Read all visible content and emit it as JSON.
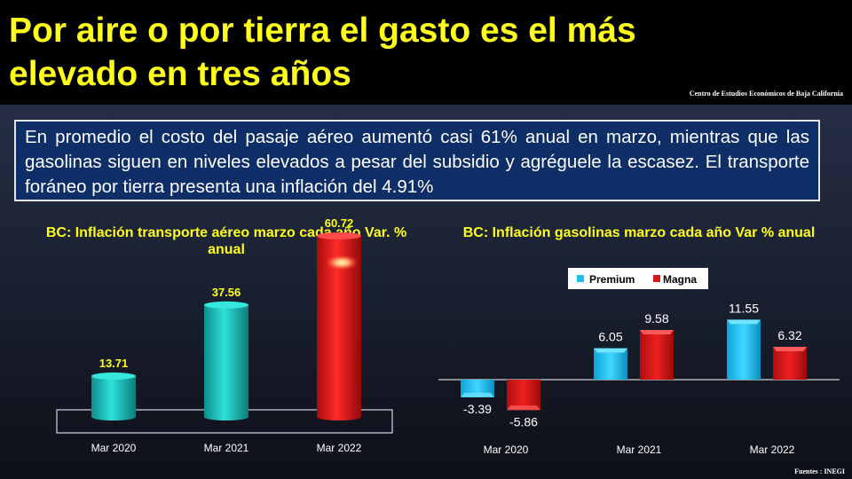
{
  "header": {
    "title": "Por aire o por tierra el gasto es el más elevado en tres años",
    "source": "Centro de Estudios Económicos de Baja California"
  },
  "summary": "En promedio el costo del pasaje aéreo aumentó casi 61% anual en marzo, mientras que las gasolinas siguen en niveles elevados a pesar del subsidio y agréguele la escasez. El transporte foráneo por tierra presenta una inflación del 4.91%",
  "footer": {
    "source": "Fuentes : INEGI"
  },
  "colors": {
    "title": "#ffff1a",
    "teal": "#19c4c0",
    "red": "#e01515",
    "premium": "#19c0f0",
    "magna": "#d81818",
    "summary_bg": "#0d2e66"
  },
  "chart_data": [
    {
      "type": "bar",
      "title": "BC: Inflación transporte aéreo marzo cada año Var. % anual",
      "categories": [
        "Mar 2020",
        "Mar 2021",
        "Mar 2022"
      ],
      "values": [
        13.71,
        37.56,
        60.72
      ],
      "value_labels": [
        "13.71",
        "37.56",
        "60.72"
      ],
      "ylim": [
        0,
        70
      ],
      "legend": "none",
      "grid": false
    },
    {
      "type": "bar",
      "title": "BC: Inflación gasolinas marzo cada año Var % anual",
      "categories": [
        "Mar 2020",
        "Mar 2021",
        "Mar 2022"
      ],
      "series": [
        {
          "name": "Premium",
          "values": [
            -3.39,
            6.05,
            11.55
          ],
          "labels": [
            "-3.39",
            "6.05",
            "11.55"
          ]
        },
        {
          "name": "Magna",
          "values": [
            -5.86,
            9.58,
            6.32
          ],
          "labels": [
            "-5.86",
            "9.58",
            "6.32"
          ]
        }
      ],
      "ylim": [
        -8,
        14
      ],
      "legend": "top",
      "grid": false
    }
  ]
}
